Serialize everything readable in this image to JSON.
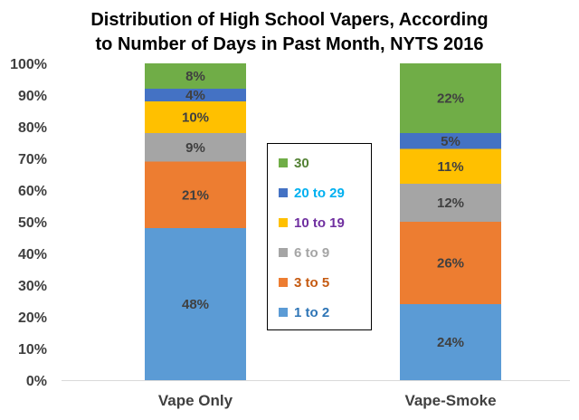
{
  "chart_data": {
    "type": "bar",
    "stacked": true,
    "title_lines": [
      "Distribution of High School Vapers, According",
      "to Number of Days in Past Month, NYTS 2016"
    ],
    "categories": [
      "Vape Only",
      "Vape-Smoke"
    ],
    "ylim": [
      0,
      100
    ],
    "yticks": [
      "0%",
      "10%",
      "20%",
      "30%",
      "40%",
      "50%",
      "60%",
      "70%",
      "80%",
      "90%",
      "100%"
    ],
    "grid": false,
    "legend_position": "center",
    "series": [
      {
        "name": "1 to 2",
        "values": [
          48,
          24
        ],
        "labels": [
          "48%",
          "24%"
        ],
        "color": "#5B9BD5",
        "legend_text_color": "#2E75B6"
      },
      {
        "name": "3 to 5",
        "values": [
          21,
          26
        ],
        "labels": [
          "21%",
          "26%"
        ],
        "color": "#ED7D31",
        "legend_text_color": "#C55A11"
      },
      {
        "name": "6 to 9",
        "values": [
          9,
          12
        ],
        "labels": [
          "9%",
          "12%"
        ],
        "color": "#A5A5A5",
        "legend_text_color": "#A5A5A5"
      },
      {
        "name": "10 to 19",
        "values": [
          10,
          11
        ],
        "labels": [
          "10%",
          "11%"
        ],
        "color": "#FFC000",
        "legend_text_color": "#7030A0"
      },
      {
        "name": "20 to 29",
        "values": [
          4,
          5
        ],
        "labels": [
          "4%",
          "5%"
        ],
        "color": "#4472C4",
        "legend_text_color": "#00B0F0"
      },
      {
        "name": "30",
        "values": [
          8,
          22
        ],
        "labels": [
          "8%",
          "22%"
        ],
        "color": "#70AD47",
        "legend_text_color": "#548235"
      }
    ]
  }
}
